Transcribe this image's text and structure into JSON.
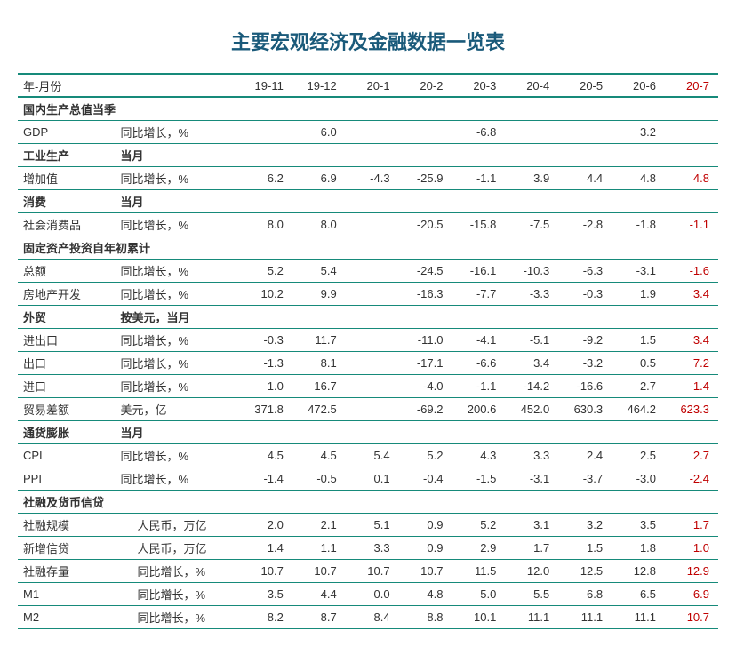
{
  "title": "主要宏观经济及金融数据一览表",
  "colors": {
    "border": "#168a7a",
    "title": "#1a5a7a",
    "text": "#333333",
    "highlight": "#c00000",
    "background": "#ffffff"
  },
  "header": {
    "label": "年-月份",
    "columns": [
      "19-11",
      "19-12",
      "20-1",
      "20-2",
      "20-3",
      "20-4",
      "20-5",
      "20-6",
      "20-7"
    ]
  },
  "sections": [
    {
      "cat": "国内生产总值当季",
      "sub": "",
      "rows": [
        {
          "cat": "GDP",
          "unit": "同比增长，%",
          "vals": [
            "",
            "6.0",
            "",
            "",
            "-6.8",
            "",
            "",
            "3.2",
            ""
          ]
        }
      ]
    },
    {
      "cat": "工业生产",
      "sub": "当月",
      "rows": [
        {
          "cat": "增加值",
          "unit": "同比增长，%",
          "vals": [
            "6.2",
            "6.9",
            "-4.3",
            "-25.9",
            "-1.1",
            "3.9",
            "4.4",
            "4.8",
            "4.8"
          ]
        }
      ]
    },
    {
      "cat": "消费",
      "sub": "当月",
      "rows": [
        {
          "cat": "社会消费品",
          "unit": "同比增长，%",
          "vals": [
            "8.0",
            "8.0",
            "",
            "-20.5",
            "-15.8",
            "-7.5",
            "-2.8",
            "-1.8",
            "-1.1"
          ]
        }
      ]
    },
    {
      "cat": "固定资产投资自年初累计",
      "sub": "",
      "rows": [
        {
          "cat": "总额",
          "unit": "同比增长，%",
          "vals": [
            "5.2",
            "5.4",
            "",
            "-24.5",
            "-16.1",
            "-10.3",
            "-6.3",
            "-3.1",
            "-1.6"
          ]
        },
        {
          "cat": "房地产开发",
          "indent": true,
          "unit": "同比增长，%",
          "vals": [
            "10.2",
            "9.9",
            "",
            "-16.3",
            "-7.7",
            "-3.3",
            "-0.3",
            "1.9",
            "3.4"
          ]
        }
      ]
    },
    {
      "cat": "外贸",
      "sub": "按美元，当月",
      "rows": [
        {
          "cat": "进出口",
          "indent": true,
          "unit": "同比增长，%",
          "vals": [
            "-0.3",
            "11.7",
            "",
            "-11.0",
            "-4.1",
            "-5.1",
            "-9.2",
            "1.5",
            "3.4"
          ]
        },
        {
          "cat": "出口",
          "indent": true,
          "unit": "同比增长，%",
          "vals": [
            "-1.3",
            "8.1",
            "",
            "-17.1",
            "-6.6",
            "3.4",
            "-3.2",
            "0.5",
            "7.2"
          ]
        },
        {
          "cat": "进口",
          "indent": true,
          "unit": "同比增长，%",
          "vals": [
            "1.0",
            "16.7",
            "",
            "-4.0",
            "-1.1",
            "-14.2",
            "-16.6",
            "2.7",
            "-1.4"
          ]
        },
        {
          "cat": "贸易差额",
          "indent": true,
          "unit": "美元，亿",
          "vals": [
            "371.8",
            "472.5",
            "",
            "-69.2",
            "200.6",
            "452.0",
            "630.3",
            "464.2",
            "623.3"
          ]
        }
      ]
    },
    {
      "cat": "通货膨胀",
      "sub": "当月",
      "rows": [
        {
          "cat": "CPI",
          "unit": "同比增长，%",
          "vals": [
            "4.5",
            "4.5",
            "5.4",
            "5.2",
            "4.3",
            "3.3",
            "2.4",
            "2.5",
            "2.7"
          ]
        },
        {
          "cat": "PPI",
          "unit": "同比增长，%",
          "vals": [
            "-1.4",
            "-0.5",
            "0.1",
            "-0.4",
            "-1.5",
            "-3.1",
            "-3.7",
            "-3.0",
            "-2.4"
          ]
        }
      ]
    },
    {
      "cat": "社融及货币信贷",
      "sub": "",
      "rows": [
        {
          "cat": "社融规模",
          "unit": "人民币，万亿",
          "unit_indent": true,
          "vals": [
            "2.0",
            "2.1",
            "5.1",
            "0.9",
            "5.2",
            "3.1",
            "3.2",
            "3.5",
            "1.7"
          ]
        },
        {
          "cat": "新增信贷",
          "unit": "人民币，万亿",
          "unit_indent": true,
          "vals": [
            "1.4",
            "1.1",
            "3.3",
            "0.9",
            "2.9",
            "1.7",
            "1.5",
            "1.8",
            "1.0"
          ]
        },
        {
          "cat": "社融存量",
          "unit": "同比增长，%",
          "unit_indent": true,
          "vals": [
            "10.7",
            "10.7",
            "10.7",
            "10.7",
            "11.5",
            "12.0",
            "12.5",
            "12.8",
            "12.9"
          ]
        },
        {
          "cat": "M1",
          "unit": "同比增长，%",
          "unit_indent": true,
          "vals": [
            "3.5",
            "4.4",
            "0.0",
            "4.8",
            "5.0",
            "5.5",
            "6.8",
            "6.5",
            "6.9"
          ]
        },
        {
          "cat": "M2",
          "unit": "同比增长，%",
          "unit_indent": true,
          "vals": [
            "8.2",
            "8.7",
            "8.4",
            "8.8",
            "10.1",
            "11.1",
            "11.1",
            "11.1",
            "10.7"
          ]
        }
      ]
    }
  ]
}
